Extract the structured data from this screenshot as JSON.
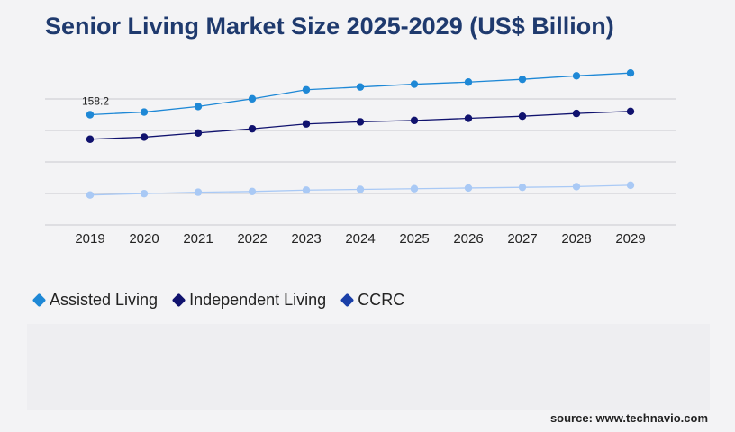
{
  "page_title": "Senior Living Market Size 2025-2029 (US$ Billion)",
  "source_text": "source: www.technavio.com",
  "chart_data": {
    "type": "line",
    "title": "Senior Living Market Size 2025-2029 (US$ Billion)",
    "xlabel": "",
    "ylabel": "",
    "x": [
      "2019",
      "2020",
      "2021",
      "2022",
      "2023",
      "2024",
      "2025",
      "2026",
      "2027",
      "2028",
      "2029"
    ],
    "ylim": [
      0,
      226
    ],
    "grid": true,
    "legend_position": "bottom-left",
    "series": [
      {
        "name": "Assisted Living",
        "color": "#1e88d6",
        "values": [
          158.2,
          162,
          170,
          181,
          194,
          198,
          202,
          205,
          209,
          214,
          218
        ]
      },
      {
        "name": "Independent Living",
        "color": "#10126e",
        "values": [
          123,
          126,
          132,
          138,
          145,
          148,
          150,
          153,
          156,
          160,
          163
        ]
      },
      {
        "name": "CCRC",
        "color": "#a9c9f5",
        "values": [
          43,
          45,
          47,
          48,
          50,
          51,
          52,
          53,
          54,
          55,
          57
        ]
      }
    ],
    "legend": [
      {
        "name": "Assisted Living",
        "color": "#1e88d6"
      },
      {
        "name": "Independent Living",
        "color": "#10126e"
      },
      {
        "name": "CCRC",
        "color": "#1a3fa8"
      }
    ],
    "annotations": [
      {
        "series": "Assisted Living",
        "x": "2019",
        "text": "158.2"
      }
    ]
  }
}
